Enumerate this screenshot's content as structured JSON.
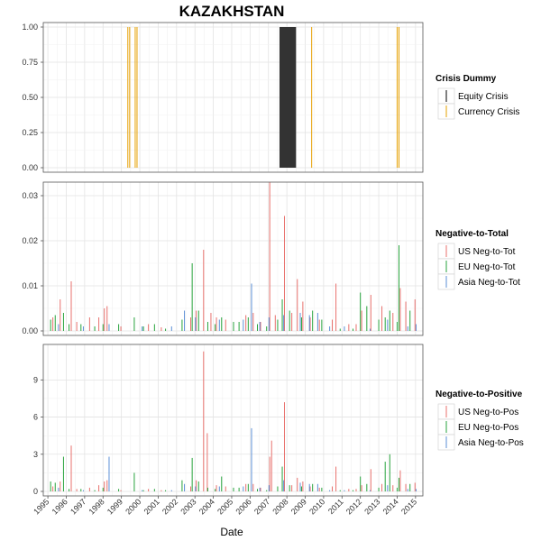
{
  "chart_data": {
    "title": "KAZAKHSTAN",
    "xlabel": "Date",
    "x_ticks": [
      "1995",
      "1996",
      "1997",
      "1998",
      "1999",
      "2000",
      "2001",
      "2002",
      "2003",
      "2004",
      "2005",
      "2006",
      "2007",
      "2008",
      "2009",
      "2010",
      "2011",
      "2012",
      "2013",
      "2014",
      "2015"
    ],
    "panels": [
      {
        "type": "bar",
        "legend_title": "Crisis Dummy",
        "ylim": [
          0,
          1
        ],
        "y_ticks": [
          "0.00",
          "0.25",
          "0.50",
          "0.75",
          "1.00"
        ],
        "y_tick_values": [
          0,
          0.25,
          0.5,
          0.75,
          1.0
        ],
        "series": [
          {
            "name": "Equity Crisis",
            "color": "#000000",
            "spans": [
              [
                2007.6,
                2008.5
              ]
            ]
          },
          {
            "name": "Currency Crisis",
            "color": "#e6a000",
            "lines": [
              1999.35,
              1999.45,
              1999.75,
              1999.85,
              2009.35,
              2014.0,
              2014.1
            ]
          }
        ]
      },
      {
        "type": "bar",
        "legend_title": "Negative-to-Total",
        "ylim": [
          0,
          0.032
        ],
        "y_ticks": [
          "0.00",
          "0.01",
          "0.02",
          "0.03"
        ],
        "y_tick_values": [
          0,
          0.01,
          0.02,
          0.03
        ],
        "series": [
          {
            "name": "US Neg-to-Tot",
            "color": "#e8716d",
            "points": [
              [
                1995.3,
                0.003
              ],
              [
                1995.7,
                0.007
              ],
              [
                1996.3,
                0.011
              ],
              [
                1996.6,
                0.002
              ],
              [
                1997.3,
                0.003
              ],
              [
                1997.8,
                0.003
              ],
              [
                1998.1,
                0.005
              ],
              [
                1998.25,
                0.0055
              ],
              [
                1999.0,
                0.001
              ],
              [
                2000.5,
                0.0015
              ],
              [
                2001.2,
                0.0008
              ],
              [
                2002.8,
                0.003
              ],
              [
                2003.1,
                0.0045
              ],
              [
                2003.5,
                0.018
              ],
              [
                2003.9,
                0.004
              ],
              [
                2004.2,
                0.003
              ],
              [
                2004.7,
                0.0025
              ],
              [
                2005.8,
                0.0035
              ],
              [
                2006.2,
                0.004
              ],
              [
                2006.6,
                0.002
              ],
              [
                2007.1,
                0.033
              ],
              [
                2007.4,
                0.0035
              ],
              [
                2007.9,
                0.0255
              ],
              [
                2008.3,
                0.004
              ],
              [
                2008.6,
                0.0115
              ],
              [
                2008.9,
                0.0065
              ],
              [
                2009.3,
                0.003
              ],
              [
                2009.8,
                0.0025
              ],
              [
                2010.5,
                0.0025
              ],
              [
                2010.7,
                0.0105
              ],
              [
                2011.4,
                0.0015
              ],
              [
                2011.8,
                0.0015
              ],
              [
                2012.1,
                0.0045
              ],
              [
                2012.6,
                0.008
              ],
              [
                2013.2,
                0.0055
              ],
              [
                2013.8,
                0.004
              ],
              [
                2014.2,
                0.0095
              ],
              [
                2014.5,
                0.0065
              ],
              [
                2015.0,
                0.007
              ]
            ]
          },
          {
            "name": "EU Neg-to-Tot",
            "color": "#27a33c",
            "points": [
              [
                1995.15,
                0.0025
              ],
              [
                1995.4,
                0.0035
              ],
              [
                1995.85,
                0.004
              ],
              [
                1996.15,
                0.0015
              ],
              [
                1996.8,
                0.0015
              ],
              [
                1997.55,
                0.001
              ],
              [
                1998.0,
                0.0015
              ],
              [
                1998.85,
                0.0015
              ],
              [
                1999.7,
                0.003
              ],
              [
                2000.2,
                0.001
              ],
              [
                2000.8,
                0.0015
              ],
              [
                2001.4,
                0.0005
              ],
              [
                2002.3,
                0.0025
              ],
              [
                2002.85,
                0.015
              ],
              [
                2003.2,
                0.0045
              ],
              [
                2003.7,
                0.002
              ],
              [
                2004.1,
                0.0015
              ],
              [
                2004.45,
                0.003
              ],
              [
                2005.1,
                0.002
              ],
              [
                2005.4,
                0.002
              ],
              [
                2005.9,
                0.003
              ],
              [
                2006.4,
                0.0015
              ],
              [
                2006.9,
                0.001
              ],
              [
                2007.5,
                0.0025
              ],
              [
                2007.75,
                0.007
              ],
              [
                2008.15,
                0.0045
              ],
              [
                2008.8,
                0.003
              ],
              [
                2009.4,
                0.0045
              ],
              [
                2009.9,
                0.0025
              ],
              [
                2010.9,
                0.0005
              ],
              [
                2011.6,
                0.0005
              ],
              [
                2012.0,
                0.0085
              ],
              [
                2012.35,
                0.0055
              ],
              [
                2013.0,
                0.0025
              ],
              [
                2013.35,
                0.003
              ],
              [
                2013.6,
                0.0045
              ],
              [
                2014.0,
                0.002
              ],
              [
                2014.1,
                0.019
              ],
              [
                2014.7,
                0.0045
              ]
            ]
          },
          {
            "name": "Asia Neg-to-Tot",
            "color": "#5b8fd6",
            "points": [
              [
                1995.55,
                0.0015
              ],
              [
                1996.9,
                0.001
              ],
              [
                1998.3,
                0.0015
              ],
              [
                2000.1,
                0.001
              ],
              [
                2001.7,
                0.001
              ],
              [
                2002.4,
                0.0045
              ],
              [
                2003.0,
                0.003
              ],
              [
                2004.3,
                0.0025
              ],
              [
                2005.6,
                0.0025
              ],
              [
                2006.05,
                0.0105
              ],
              [
                2006.5,
                0.002
              ],
              [
                2007.0,
                0.003
              ],
              [
                2007.8,
                0.0035
              ],
              [
                2008.7,
                0.004
              ],
              [
                2009.2,
                0.0035
              ],
              [
                2009.65,
                0.004
              ],
              [
                2010.3,
                0.001
              ],
              [
                2011.1,
                0.001
              ],
              [
                2012.5,
                0.0005
              ],
              [
                2013.45,
                0.0025
              ],
              [
                2014.55,
                0.001
              ],
              [
                2015.0,
                0.0015
              ]
            ]
          }
        ]
      },
      {
        "type": "bar",
        "legend_title": "Negative-to-Positive",
        "ylim": [
          0,
          11.5
        ],
        "y_ticks": [
          "0",
          "3",
          "6",
          "9"
        ],
        "y_tick_values": [
          0,
          3,
          6,
          9
        ],
        "series": [
          {
            "name": "US Neg-to-Pos",
            "color": "#e8716d",
            "points": [
              [
                1995.3,
                0.4
              ],
              [
                1995.7,
                0.8
              ],
              [
                1996.3,
                3.7
              ],
              [
                1996.6,
                0.2
              ],
              [
                1997.3,
                0.3
              ],
              [
                1997.8,
                0.5
              ],
              [
                1998.1,
                0.8
              ],
              [
                1998.25,
                0.9
              ],
              [
                1999.0,
                0.1
              ],
              [
                2000.5,
                0.2
              ],
              [
                2001.2,
                0.1
              ],
              [
                2002.8,
                0.4
              ],
              [
                2003.1,
                0.9
              ],
              [
                2003.5,
                11.3
              ],
              [
                2003.7,
                4.7
              ],
              [
                2004.2,
                0.5
              ],
              [
                2004.7,
                0.4
              ],
              [
                2005.8,
                0.6
              ],
              [
                2006.2,
                0.6
              ],
              [
                2006.6,
                0.3
              ],
              [
                2007.1,
                2.8
              ],
              [
                2007.2,
                4.1
              ],
              [
                2007.9,
                7.2
              ],
              [
                2008.3,
                0.5
              ],
              [
                2008.6,
                1.1
              ],
              [
                2008.9,
                0.8
              ],
              [
                2009.3,
                0.4
              ],
              [
                2009.8,
                0.3
              ],
              [
                2010.5,
                0.4
              ],
              [
                2010.7,
                2.0
              ],
              [
                2011.4,
                0.2
              ],
              [
                2011.8,
                0.2
              ],
              [
                2012.1,
                0.5
              ],
              [
                2012.6,
                1.8
              ],
              [
                2013.2,
                0.6
              ],
              [
                2013.8,
                0.5
              ],
              [
                2014.2,
                1.7
              ],
              [
                2014.5,
                0.6
              ],
              [
                2015.0,
                0.7
              ]
            ]
          },
          {
            "name": "EU Neg-to-Pos",
            "color": "#27a33c",
            "points": [
              [
                1995.15,
                0.8
              ],
              [
                1995.4,
                0.7
              ],
              [
                1995.85,
                2.8
              ],
              [
                1996.15,
                0.2
              ],
              [
                1996.8,
                0.2
              ],
              [
                1997.55,
                0.1
              ],
              [
                1998.0,
                0.3
              ],
              [
                1998.85,
                0.2
              ],
              [
                1999.7,
                1.5
              ],
              [
                2000.2,
                0.1
              ],
              [
                2000.8,
                0.2
              ],
              [
                2001.4,
                0.1
              ],
              [
                2002.3,
                0.9
              ],
              [
                2002.85,
                2.7
              ],
              [
                2003.2,
                0.8
              ],
              [
                2003.7,
                0.3
              ],
              [
                2004.1,
                0.2
              ],
              [
                2004.45,
                1.2
              ],
              [
                2005.1,
                0.3
              ],
              [
                2005.4,
                0.3
              ],
              [
                2005.9,
                0.6
              ],
              [
                2006.4,
                0.2
              ],
              [
                2006.9,
                0.1
              ],
              [
                2007.5,
                0.4
              ],
              [
                2007.75,
                2.0
              ],
              [
                2008.15,
                0.5
              ],
              [
                2008.8,
                0.4
              ],
              [
                2009.4,
                0.6
              ],
              [
                2009.9,
                0.3
              ],
              [
                2010.9,
                0.1
              ],
              [
                2011.6,
                0.1
              ],
              [
                2012.0,
                1.2
              ],
              [
                2012.35,
                0.6
              ],
              [
                2013.0,
                0.3
              ],
              [
                2013.35,
                2.4
              ],
              [
                2013.6,
                3.0
              ],
              [
                2014.0,
                0.3
              ],
              [
                2014.1,
                1.1
              ],
              [
                2014.7,
                0.6
              ]
            ]
          },
          {
            "name": "Asia Neg-to-Pos",
            "color": "#5b8fd6",
            "points": [
              [
                1995.55,
                0.3
              ],
              [
                1996.9,
                0.1
              ],
              [
                1998.3,
                2.8
              ],
              [
                2000.1,
                0.1
              ],
              [
                2001.7,
                0.1
              ],
              [
                2002.4,
                0.6
              ],
              [
                2003.0,
                0.4
              ],
              [
                2004.3,
                0.4
              ],
              [
                2005.6,
                0.4
              ],
              [
                2006.05,
                5.1
              ],
              [
                2006.5,
                0.3
              ],
              [
                2007.0,
                0.5
              ],
              [
                2007.8,
                0.9
              ],
              [
                2008.7,
                0.7
              ],
              [
                2009.2,
                0.6
              ],
              [
                2009.65,
                0.6
              ],
              [
                2010.3,
                0.1
              ],
              [
                2011.1,
                0.1
              ],
              [
                2012.5,
                0.1
              ],
              [
                2013.45,
                0.5
              ],
              [
                2014.55,
                0.2
              ],
              [
                2015.0,
                0.2
              ]
            ]
          }
        ]
      }
    ]
  }
}
